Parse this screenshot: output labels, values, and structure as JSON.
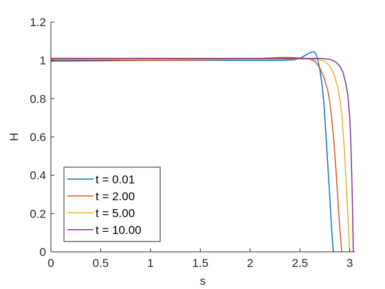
{
  "chart_data": {
    "type": "line",
    "title": "",
    "xlabel": "s",
    "ylabel": "H",
    "xlim": [
      0,
      3.05
    ],
    "ylim": [
      0,
      1.2
    ],
    "xticks": [
      "0",
      "0.5",
      "1",
      "1.5",
      "2",
      "2.5",
      "3"
    ],
    "xtick_values": [
      0,
      0.5,
      1,
      1.5,
      2,
      2.5,
      3
    ],
    "yticks": [
      "0",
      "0.2",
      "0.4",
      "0.6",
      "0.8",
      "1",
      "1.2"
    ],
    "ytick_values": [
      0,
      0.2,
      0.4,
      0.6,
      0.8,
      1,
      1.2
    ],
    "grid": false,
    "legend_position": "bottom-left",
    "series": [
      {
        "name": "t = 0.01",
        "color": "#0072BD",
        "x": [
          0,
          0.5,
          1.0,
          1.5,
          2.0,
          2.3,
          2.45,
          2.5,
          2.55,
          2.6,
          2.64,
          2.66,
          2.68,
          2.7,
          2.72,
          2.74,
          2.76,
          2.78,
          2.8,
          2.82,
          2.835
        ],
        "y": [
          1.0,
          1.0,
          1.0,
          1.0,
          1.0,
          1.0,
          1.003,
          1.01,
          1.025,
          1.04,
          1.045,
          1.035,
          1.0,
          0.95,
          0.88,
          0.78,
          0.62,
          0.45,
          0.28,
          0.1,
          0
        ]
      },
      {
        "name": "t = 2.00",
        "color": "#D95319",
        "x": [
          0,
          0.5,
          1.0,
          1.5,
          2.0,
          2.2,
          2.3,
          2.4,
          2.5,
          2.6,
          2.65,
          2.7,
          2.74,
          2.78,
          2.8,
          2.82,
          2.84,
          2.86,
          2.88,
          2.9,
          2.92
        ],
        "y": [
          0.995,
          0.997,
          1.0,
          1.002,
          1.008,
          1.012,
          1.015,
          1.015,
          1.012,
          1.005,
          0.995,
          0.96,
          0.91,
          0.84,
          0.78,
          0.69,
          0.58,
          0.44,
          0.28,
          0.12,
          0
        ]
      },
      {
        "name": "t = 5.00",
        "color": "#EDB120",
        "x": [
          0,
          0.5,
          1.0,
          1.5,
          2.0,
          2.3,
          2.5,
          2.6,
          2.7,
          2.75,
          2.8,
          2.84,
          2.88,
          2.9,
          2.92,
          2.94,
          2.96,
          2.98,
          3.0
        ],
        "y": [
          1.005,
          1.005,
          1.006,
          1.006,
          1.006,
          1.007,
          1.007,
          1.006,
          1.002,
          0.995,
          0.97,
          0.93,
          0.86,
          0.8,
          0.72,
          0.58,
          0.4,
          0.2,
          0
        ]
      },
      {
        "name": "t = 10.00",
        "color": "#7E2F8E",
        "x": [
          0,
          0.5,
          1.0,
          1.5,
          2.0,
          2.5,
          2.7,
          2.8,
          2.85,
          2.9,
          2.93,
          2.96,
          2.98,
          3.0,
          3.01,
          3.02,
          3.03,
          3.035
        ],
        "y": [
          1.01,
          1.01,
          1.01,
          1.01,
          1.01,
          1.01,
          1.01,
          1.005,
          0.995,
          0.97,
          0.94,
          0.88,
          0.82,
          0.7,
          0.58,
          0.4,
          0.18,
          0
        ]
      }
    ]
  }
}
